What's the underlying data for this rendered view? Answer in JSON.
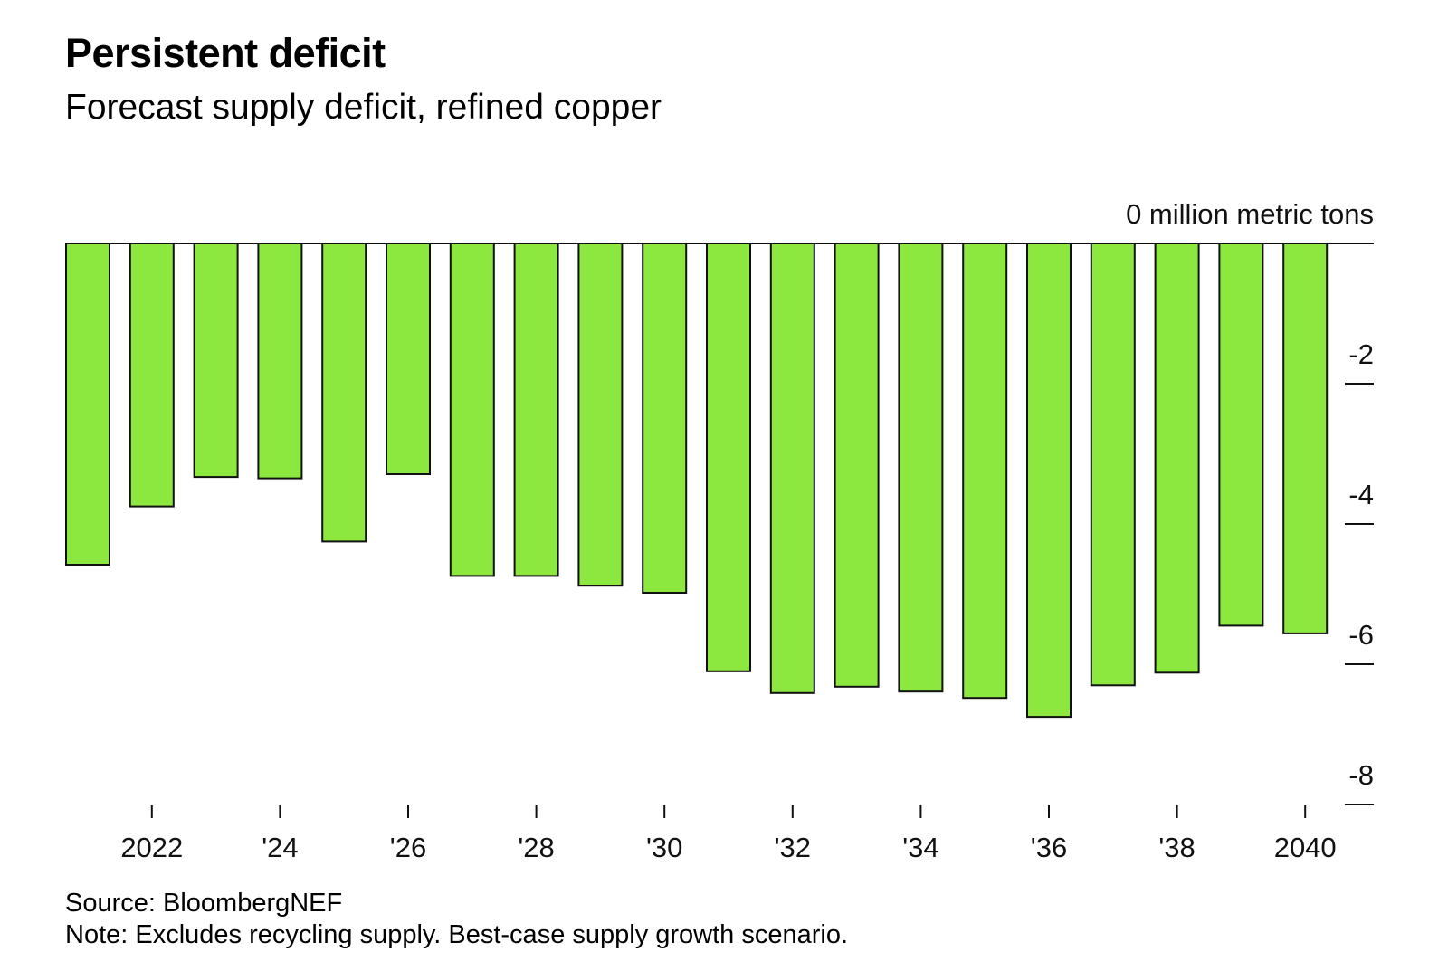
{
  "header": {
    "title": "Persistent deficit",
    "subtitle": "Forecast supply deficit, refined copper"
  },
  "footer": {
    "source": "Source: BloombergNEF",
    "note": "Note: Excludes recycling supply. Best-case supply growth scenario."
  },
  "colors": {
    "bar_fill": "#8ce83f",
    "bar_stroke": "#111111",
    "axis": "#111111"
  },
  "chart_data": {
    "type": "bar",
    "title": "Persistent deficit",
    "subtitle": "Forecast supply deficit, refined copper",
    "xlabel": "",
    "ylabel": "million metric tons",
    "unit_label": "0 million metric tons",
    "categories": [
      "2021",
      "2022",
      "2023",
      "2024",
      "2025",
      "2026",
      "2027",
      "2028",
      "2029",
      "2030",
      "2031",
      "2032",
      "2033",
      "2034",
      "2035",
      "2036",
      "2037",
      "2038",
      "2039",
      "2040"
    ],
    "values": [
      -4.58,
      -3.75,
      -3.33,
      -3.35,
      -4.25,
      -3.29,
      -4.74,
      -4.74,
      -4.88,
      -4.98,
      -6.1,
      -6.41,
      -6.32,
      -6.39,
      -6.48,
      -6.75,
      -6.3,
      -6.12,
      -5.45,
      -5.56
    ],
    "ylim": [
      -8,
      0
    ],
    "y_ticks": [
      {
        "value": 0,
        "label": "0 million metric tons"
      },
      {
        "value": -2,
        "label": "-2"
      },
      {
        "value": -4,
        "label": "-4"
      },
      {
        "value": -6,
        "label": "-6"
      },
      {
        "value": -8,
        "label": "-8"
      }
    ],
    "x_ticks": [
      {
        "category": "2022",
        "label": "2022"
      },
      {
        "category": "2024",
        "label": "'24"
      },
      {
        "category": "2026",
        "label": "'26"
      },
      {
        "category": "2028",
        "label": "'28"
      },
      {
        "category": "2030",
        "label": "'30"
      },
      {
        "category": "2032",
        "label": "'32"
      },
      {
        "category": "2034",
        "label": "'34"
      },
      {
        "category": "2036",
        "label": "'36"
      },
      {
        "category": "2038",
        "label": "'38"
      },
      {
        "category": "2040",
        "label": "2040"
      }
    ],
    "y_axis_position": "right",
    "grid": false,
    "legend": "none"
  }
}
